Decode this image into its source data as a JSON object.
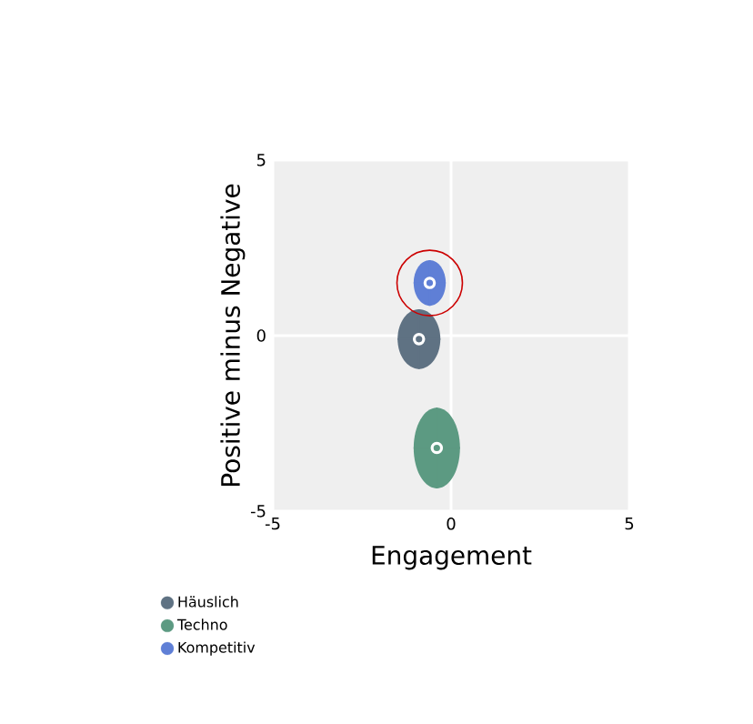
{
  "chart_data": {
    "type": "scatter",
    "xlabel": "Engagement",
    "ylabel": "Positive minus Negative",
    "xlim": [
      -5,
      5
    ],
    "ylim": [
      -5,
      5
    ],
    "xticks": [
      -5,
      0,
      5
    ],
    "yticks": [
      -5,
      0,
      5
    ],
    "grid": true,
    "legend": "bottom left",
    "series": [
      {
        "name": "Häuslich",
        "color": "#5f7283",
        "x": [
          -0.9
        ],
        "values": [
          -0.1
        ],
        "xerrors": [
          0.6
        ],
        "errors": [
          0.85
        ]
      },
      {
        "name": "Techno",
        "color": "#5c9a82",
        "x": [
          -0.4
        ],
        "values": [
          -3.2
        ],
        "xerrors": [
          0.65
        ],
        "errors": [
          1.15
        ]
      },
      {
        "name": "Kompetitiv",
        "color": "#5f7fd6",
        "x": [
          -0.6
        ],
        "values": [
          1.5
        ],
        "xerrors": [
          0.45
        ],
        "errors": [
          0.65
        ]
      }
    ]
  }
}
